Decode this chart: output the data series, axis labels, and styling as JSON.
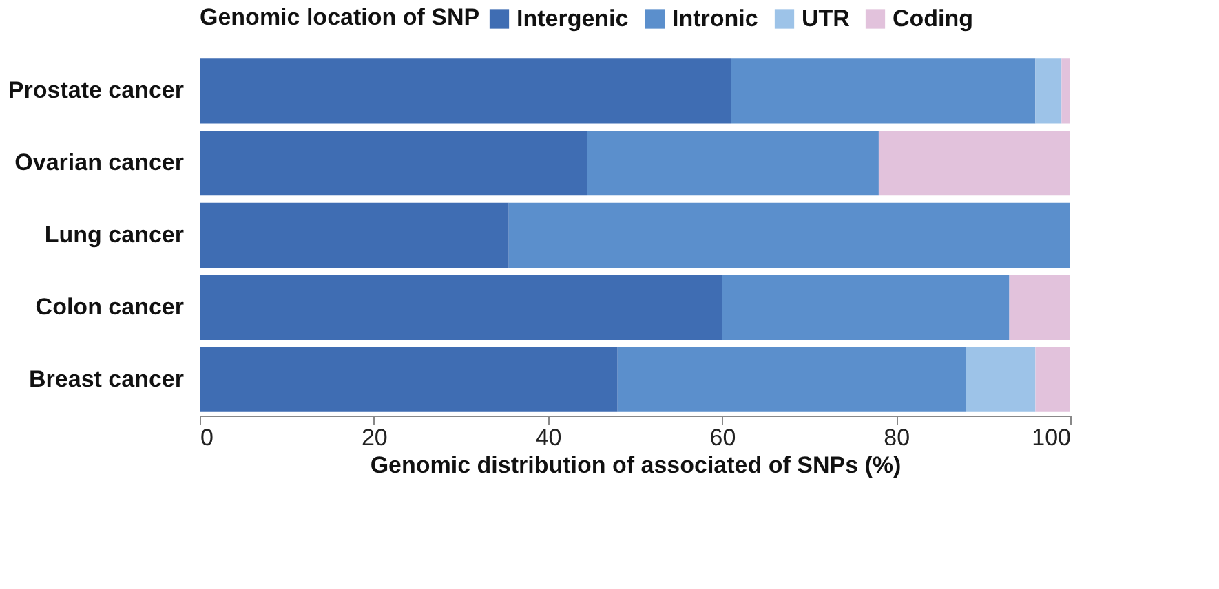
{
  "chart_data": {
    "type": "bar",
    "orientation": "horizontal",
    "stacked": true,
    "xlabel": "Genomic distribution of associated of SNPs (%)",
    "legend_title": "Genomic location of SNP",
    "legend": "top",
    "categories": [
      "Prostate cancer",
      "Ovarian cancer",
      "Lung cancer",
      "Colon cancer",
      "Breast cancer"
    ],
    "series": [
      {
        "name": "Intergenic",
        "color": "#3f6db3",
        "values": [
          61,
          44.5,
          35.5,
          60,
          48
        ]
      },
      {
        "name": "Intronic",
        "color": "#5b8fcc",
        "values": [
          35,
          33.5,
          64.5,
          33,
          40
        ]
      },
      {
        "name": "UTR",
        "color": "#9dc3e8",
        "values": [
          3,
          0,
          0,
          0,
          8
        ]
      },
      {
        "name": "Coding",
        "color": "#e2c2dc",
        "values": [
          1,
          22,
          0,
          7,
          4
        ]
      }
    ],
    "xlim": [
      0,
      100
    ],
    "xticks": [
      0,
      20,
      40,
      60,
      80,
      100
    ]
  }
}
